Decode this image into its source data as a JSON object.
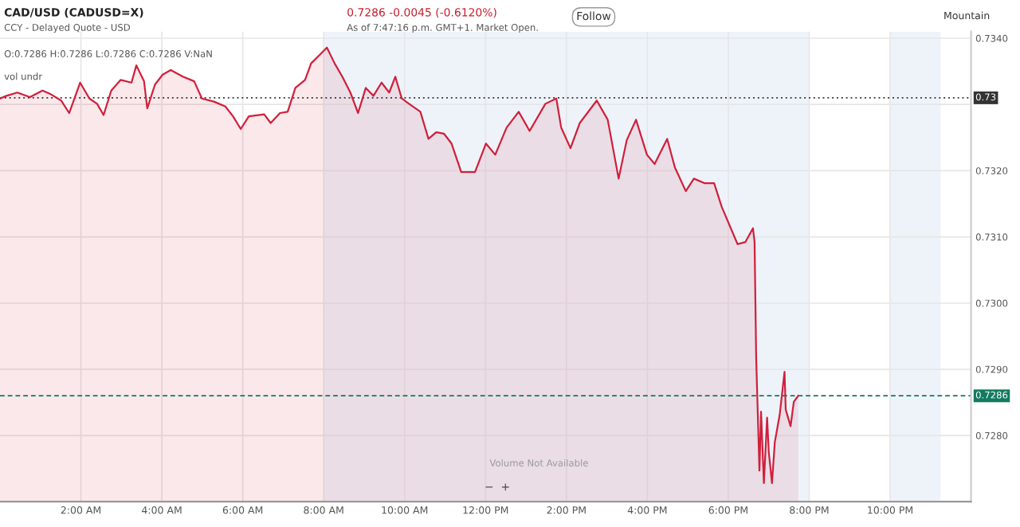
{
  "chart_data": {
    "type": "area",
    "title": "CAD/USD (CADUSD=X)",
    "subtitle": "CCY - Delayed Quote - USD",
    "annotations": [
      "0.7286 -0.0045 (-0.6120%)",
      "As of 7:47:16 p.m. GMT+1. Market Open.",
      "Follow",
      "Mountain",
      "O:0.7286 H:0.7286 L:0.7286 C:0.7286 V:NaN",
      "vol undr",
      "Volume Not Available",
      "−  +"
    ],
    "x": [
      0.0,
      0.16,
      0.43,
      0.74,
      1.05,
      1.24,
      1.51,
      1.71,
      1.98,
      2.21,
      2.4,
      2.56,
      2.75,
      2.98,
      3.25,
      3.37,
      3.56,
      3.64,
      3.83,
      4.02,
      4.22,
      4.52,
      4.8,
      4.99,
      5.3,
      5.57,
      5.76,
      5.95,
      6.15,
      6.53,
      6.69,
      6.92,
      7.11,
      7.3,
      7.54,
      7.69,
      7.92,
      8.08,
      8.27,
      8.46,
      8.66,
      8.85,
      9.04,
      9.23,
      9.43,
      9.62,
      9.77,
      9.93,
      10.2,
      10.39,
      10.59,
      10.78,
      10.97,
      11.16,
      11.4,
      11.74,
      12.01,
      12.24,
      12.52,
      12.82,
      13.09,
      13.48,
      13.75,
      13.87,
      14.1,
      14.33,
      14.75,
      15.02,
      15.29,
      15.49,
      15.72,
      15.99,
      16.18,
      16.49,
      16.68,
      16.95,
      17.15,
      17.42,
      17.65,
      17.84,
      18.23,
      18.42,
      18.61,
      18.65,
      18.69,
      18.77,
      18.81,
      18.88,
      18.96,
      19.0,
      19.08,
      19.15,
      19.27,
      19.39,
      19.42,
      19.54,
      19.62,
      19.73
    ],
    "series": [
      {
        "color": "#d0203c",
        "values": [
          0.73309,
          0.73313,
          0.73318,
          0.73311,
          0.73321,
          0.73316,
          0.73306,
          0.73287,
          0.73333,
          0.73309,
          0.73301,
          0.73284,
          0.73321,
          0.73337,
          0.73333,
          0.73359,
          0.73335,
          0.73294,
          0.7333,
          0.73345,
          0.73352,
          0.73342,
          0.73335,
          0.73309,
          0.73304,
          0.73297,
          0.73282,
          0.73263,
          0.73282,
          0.73285,
          0.73272,
          0.73287,
          0.73289,
          0.73325,
          0.73337,
          0.73362,
          0.73376,
          0.73386,
          0.73362,
          0.73342,
          0.73318,
          0.73287,
          0.73325,
          0.73313,
          0.73333,
          0.73318,
          0.73342,
          0.73309,
          0.73297,
          0.73289,
          0.73248,
          0.73258,
          0.73256,
          0.73241,
          0.73198,
          0.73198,
          0.73241,
          0.73224,
          0.73265,
          0.73289,
          0.7326,
          0.73301,
          0.73309,
          0.73265,
          0.73234,
          0.73272,
          0.73306,
          0.73277,
          0.73188,
          0.73246,
          0.73277,
          0.73224,
          0.7321,
          0.73248,
          0.73205,
          0.73169,
          0.73188,
          0.73181,
          0.73181,
          0.73145,
          0.73089,
          0.73092,
          0.73113,
          0.73092,
          0.72916,
          0.72747,
          0.72836,
          0.72728,
          0.72827,
          0.72776,
          0.72728,
          0.7279,
          0.72831,
          0.72896,
          0.72839,
          0.72814,
          0.72851,
          0.7286
        ]
      }
    ],
    "xlim": [
      0,
      24
    ],
    "xticks": [
      {
        "value": 2,
        "label": "2:00 AM"
      },
      {
        "value": 4,
        "label": "4:00 AM"
      },
      {
        "value": 6,
        "label": "6:00 AM"
      },
      {
        "value": 8,
        "label": "8:00 AM"
      },
      {
        "value": 10,
        "label": "10:00 AM"
      },
      {
        "value": 12,
        "label": "12:00 PM"
      },
      {
        "value": 14,
        "label": "2:00 PM"
      },
      {
        "value": 16,
        "label": "4:00 PM"
      },
      {
        "value": 18,
        "label": "6:00 PM"
      },
      {
        "value": 20,
        "label": "8:00 PM"
      },
      {
        "value": 22,
        "label": "10:00 PM"
      }
    ],
    "ylim": [
      0.727,
      0.7341
    ],
    "yticks": [
      {
        "value": 0.728,
        "label": "0.7280"
      },
      {
        "value": 0.729,
        "label": "0.7290"
      },
      {
        "value": 0.73,
        "label": "0.7300"
      },
      {
        "value": 0.731,
        "label": "0.7310"
      },
      {
        "value": 0.732,
        "label": "0.7320"
      },
      {
        "value": 0.733,
        "label": null
      },
      {
        "value": 0.734,
        "label": "0.7340"
      }
    ],
    "ref_lines": [
      {
        "axis": "y",
        "value": 0.7331,
        "label": "0.73",
        "color": "#333333",
        "line_style": "dotted"
      },
      {
        "axis": "y",
        "value": 0.7286,
        "label": "0.7286",
        "color": "#137a5f",
        "line_style": "dashed"
      }
    ],
    "bands": [
      {
        "axis": "x",
        "from": 8,
        "to": 20,
        "color": "#eef3fa"
      },
      {
        "axis": "x",
        "from": 22,
        "to": 23.25,
        "color": "#eef3fa"
      }
    ],
    "grid": true,
    "legend": false
  }
}
